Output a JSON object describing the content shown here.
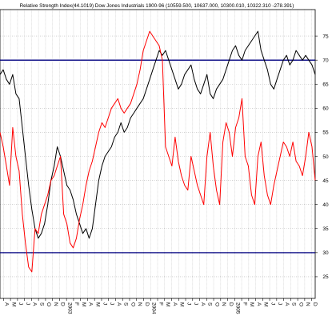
{
  "chart_data": {
    "type": "line",
    "title": "Relative Strength Index(44.1019) Dow Jones Industrials 1900-96 (10559.500, 10637.000, 10300.010, 10322.310 -278.391)",
    "xlabel": "",
    "ylabel": "",
    "x_tick_labels": [
      "A",
      "M",
      "J",
      "J",
      "A",
      "S",
      "O",
      "N",
      "D",
      "2003",
      "F",
      "M",
      "A",
      "M",
      "J",
      "J",
      "A",
      "S",
      "O",
      "N",
      "D",
      "2004",
      "F",
      "M",
      "A",
      "M",
      "J",
      "J",
      "A",
      "S",
      "O",
      "N",
      "D",
      "2005",
      "F",
      "M",
      "A",
      "M",
      "J",
      "J",
      "A",
      "S",
      "O",
      "N",
      "D"
    ],
    "y_ticks": [
      25,
      30,
      35,
      40,
      45,
      50,
      55,
      60,
      65,
      70,
      75
    ],
    "ylim": [
      20.5,
      80.5
    ],
    "x_count": 100,
    "reference_lines": [
      70,
      30
    ],
    "grid": true,
    "colors": {
      "grid": "#b8b8b8",
      "reference_line": "#000080",
      "series_black": "#000000",
      "series_red": "#ff0000"
    },
    "series": [
      {
        "color": "#000000",
        "values": [
          67,
          68,
          66,
          65,
          67,
          63,
          62,
          56,
          50,
          44,
          39,
          35,
          33,
          34,
          36,
          40,
          45,
          48,
          52,
          50,
          47,
          44,
          43,
          41,
          38,
          36,
          34,
          35,
          33,
          35,
          40,
          45,
          48,
          50,
          51,
          52,
          54,
          55,
          57,
          55,
          56,
          58,
          59,
          60,
          61,
          62,
          64,
          66,
          68,
          70,
          72,
          71,
          72,
          70,
          68,
          66,
          64,
          65,
          67,
          68,
          69,
          66,
          64,
          63,
          65,
          67,
          63,
          62,
          64,
          65,
          66,
          68,
          70,
          72,
          73,
          71,
          70,
          72,
          73,
          74,
          75,
          76,
          72,
          70,
          68,
          65,
          64,
          66,
          68,
          70,
          71,
          69,
          70,
          72,
          71,
          70,
          71,
          70,
          69,
          67
        ],
        "name": ""
      },
      {
        "color": "#ff0000",
        "values": [
          55,
          52,
          48,
          44,
          56,
          50,
          47,
          38,
          32,
          27,
          26,
          35,
          34,
          38,
          40,
          42,
          45,
          46,
          48,
          50,
          38,
          36,
          32,
          31,
          33,
          37,
          40,
          44,
          47,
          49,
          52,
          55,
          57,
          56,
          58,
          60,
          61,
          62,
          60,
          59,
          60,
          61,
          63,
          65,
          68,
          72,
          74,
          76,
          75,
          74,
          73,
          70,
          52,
          50,
          48,
          54,
          49,
          46,
          44,
          43,
          50,
          47,
          44,
          42,
          40,
          50,
          55,
          48,
          43,
          40,
          53,
          57,
          55,
          50,
          56,
          58,
          62,
          50,
          48,
          42,
          40,
          50,
          53,
          46,
          42,
          40,
          44,
          47,
          50,
          53,
          52,
          50,
          53,
          49,
          48,
          46,
          50,
          55,
          52,
          45
        ],
        "name": ""
      }
    ]
  }
}
